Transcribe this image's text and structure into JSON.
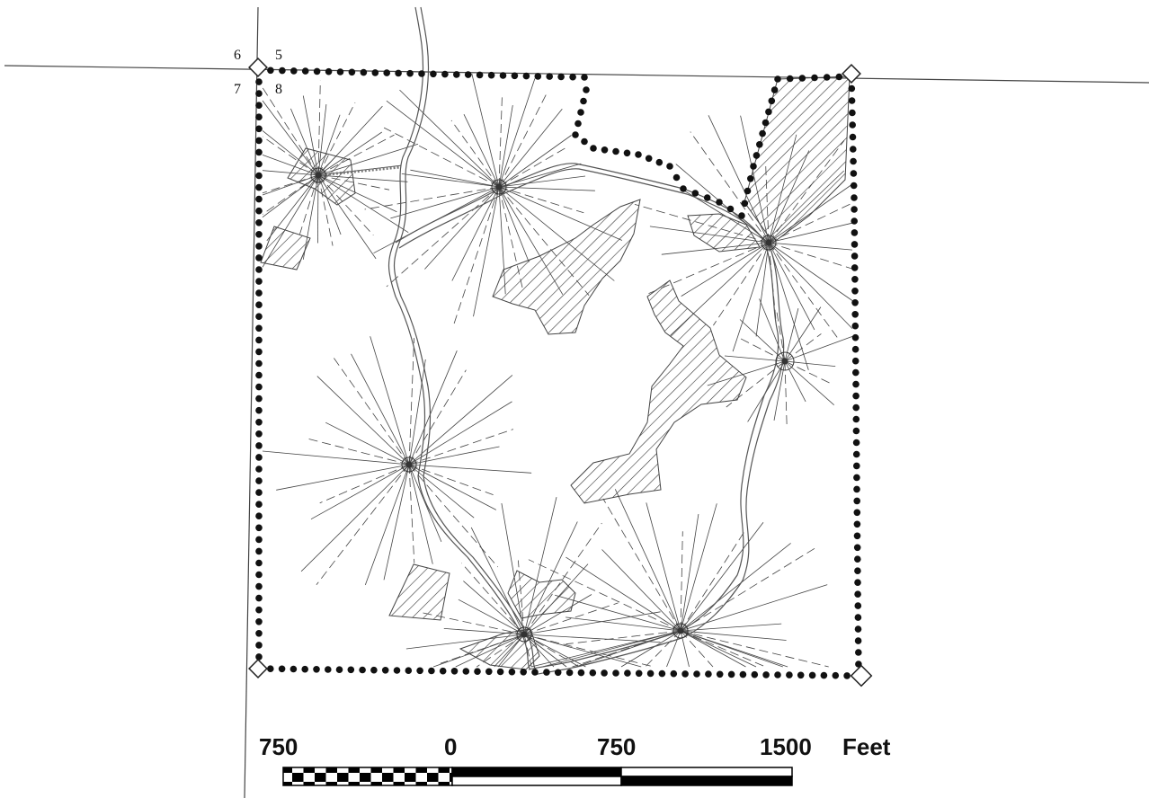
{
  "corner_labels": {
    "nw": "6",
    "ne": "5",
    "sw": "7",
    "se": "8"
  },
  "scale_bar": {
    "labels": [
      "750",
      "0",
      "750",
      "1500"
    ],
    "unit": "Feet"
  },
  "colors": {
    "ink": "#222222",
    "boundary_dot": "#111111",
    "hatch": "#333333",
    "background": "#ffffff"
  }
}
